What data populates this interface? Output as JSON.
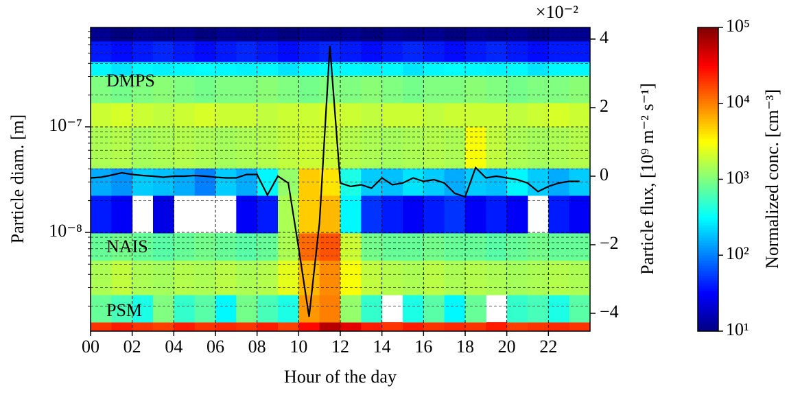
{
  "chart_data": {
    "type": "heatmap",
    "x_label": "Hour of the day",
    "y_label": "Particle diam. [m]",
    "y2_label": "Particle flux, [10⁹ m⁻² s⁻¹]",
    "y2_offset": "×10⁻²",
    "colorbar_label": "Normalized conc. [cm⁻³]",
    "annotations": [
      "DMPS",
      "NAIS",
      "PSM"
    ],
    "colormap": "jet",
    "y_log": true,
    "grid": true,
    "xlim": [
      0,
      24
    ],
    "xticks": [
      {
        "value": 0,
        "label": "00"
      },
      {
        "value": 2,
        "label": "02"
      },
      {
        "value": 4,
        "label": "04"
      },
      {
        "value": 6,
        "label": "06"
      },
      {
        "value": 8,
        "label": "08"
      },
      {
        "value": 10,
        "label": "10"
      },
      {
        "value": 12,
        "label": "12"
      },
      {
        "value": 14,
        "label": "14"
      },
      {
        "value": 16,
        "label": "16"
      },
      {
        "value": 18,
        "label": "18"
      },
      {
        "value": 20,
        "label": "20"
      },
      {
        "value": 22,
        "label": "22"
      }
    ],
    "ylim": [
      1.16e-09,
      8.75e-07
    ],
    "yticks": [
      {
        "value": 1e-08,
        "label": "10⁻⁸"
      },
      {
        "value": 1e-07,
        "label": "10⁻⁷"
      }
    ],
    "yminorticks": [
      2e-09,
      3e-09,
      4e-09,
      5e-09,
      6e-09,
      7e-09,
      8e-09,
      9e-09,
      2e-08,
      3e-08,
      4e-08,
      5e-08,
      6e-08,
      7e-08,
      8e-08,
      9e-08,
      2e-07,
      3e-07,
      4e-07,
      5e-07,
      6e-07,
      7e-07,
      8e-07
    ],
    "y2lim": [
      -4.52,
      4.34
    ],
    "y2ticks": [
      {
        "value": -4,
        "label": "−4"
      },
      {
        "value": -2,
        "label": "−2"
      },
      0,
      2,
      4
    ],
    "clim": [
      10,
      100000
    ],
    "cticks": [
      {
        "value": 10,
        "label": "10¹"
      },
      {
        "value": 100,
        "label": "10²"
      },
      {
        "value": 1000,
        "label": "10³"
      },
      {
        "value": 10000,
        "label": "10⁴"
      },
      {
        "value": 100000,
        "label": "10⁵"
      }
    ],
    "x_bins": [
      0,
      1,
      2,
      3,
      4,
      5,
      6,
      7,
      8,
      9,
      10,
      11,
      12,
      13,
      14,
      15,
      16,
      17,
      18,
      19,
      20,
      21,
      22,
      23,
      24
    ],
    "y_bins": [
      1.16e-09,
      1.41e-09,
      2.56e-09,
      5.42e-09,
      9.86e-09,
      2.24e-08,
      4.07e-08,
      1e-07,
      1.69e-07,
      3.07e-07,
      4.14e-07,
      6.49e-07,
      8.75e-07
    ],
    "z": [
      [
        20000,
        25000,
        20000,
        18000,
        25000,
        20000,
        22000,
        20000,
        25000,
        18000,
        30000,
        60000,
        40000,
        25000,
        20000,
        25000,
        20000,
        22000,
        20000,
        25000,
        18000,
        20000,
        22000,
        20000
      ],
      [
        800,
        600,
        400,
        1000,
        500,
        700,
        300,
        900,
        600,
        400,
        8000,
        10000,
        1200,
        500,
        null,
        400,
        700,
        300,
        800,
        null,
        500,
        600,
        400,
        700
      ],
      [
        1500,
        1800,
        1500,
        1400,
        1600,
        1500,
        1700,
        1500,
        1600,
        2500,
        6000,
        9000,
        3000,
        1800,
        1600,
        1500,
        1700,
        1500,
        1600,
        1500,
        1400,
        1500,
        1600,
        1500
      ],
      [
        800,
        900,
        800,
        700,
        800,
        900,
        800,
        700,
        800,
        1500,
        12000,
        15000,
        2000,
        900,
        800,
        800,
        900,
        800,
        800,
        700,
        800,
        900,
        800,
        800
      ],
      [
        40,
        30,
        null,
        25,
        null,
        null,
        null,
        30,
        40,
        1500,
        5000,
        6000,
        300,
        50,
        40,
        30,
        40,
        50,
        30,
        40,
        30,
        null,
        40,
        30
      ],
      [
        150,
        120,
        200,
        180,
        150,
        100,
        200,
        150,
        300,
        1200,
        5000,
        4000,
        400,
        200,
        180,
        250,
        200,
        150,
        200,
        180,
        300,
        200,
        150,
        200
      ],
      [
        1500,
        1600,
        1400,
        1500,
        1600,
        1500,
        1400,
        1500,
        1600,
        1800,
        2000,
        2000,
        1600,
        1500,
        1400,
        1500,
        1600,
        1500,
        3000,
        1800,
        1500,
        1400,
        1500,
        1600
      ],
      [
        2000,
        2200,
        2000,
        1800,
        2000,
        2200,
        2000,
        2000,
        1800,
        2000,
        2000,
        2200,
        2000,
        1800,
        2000,
        2000,
        1800,
        2000,
        2000,
        2000,
        1800,
        2000,
        2200,
        2000
      ],
      [
        1000,
        900,
        1000,
        1100,
        1000,
        900,
        1000,
        1000,
        1100,
        1000,
        900,
        1000,
        1000,
        1100,
        1000,
        900,
        1000,
        1000,
        1100,
        1000,
        900,
        1000,
        1000,
        1100
      ],
      [
        300,
        250,
        300,
        280,
        300,
        320,
        300,
        280,
        300,
        250,
        300,
        320,
        300,
        280,
        300,
        250,
        300,
        320,
        300,
        280,
        300,
        250,
        300,
        300
      ],
      [
        40,
        35,
        40,
        45,
        40,
        35,
        40,
        45,
        40,
        35,
        40,
        45,
        40,
        35,
        40,
        45,
        40,
        35,
        40,
        45,
        40,
        35,
        40,
        40
      ],
      [
        12,
        10,
        12,
        11,
        12,
        10,
        12,
        11,
        12,
        10,
        12,
        11,
        12,
        10,
        12,
        11,
        12,
        10,
        12,
        11,
        12,
        10,
        12,
        12
      ]
    ],
    "series": [
      {
        "color": "#000000",
        "axis": "y2",
        "x": [
          0,
          0.5,
          1,
          1.5,
          2,
          2.5,
          3,
          3.5,
          4,
          4.5,
          5,
          5.5,
          6,
          6.5,
          7,
          7.5,
          8,
          8.5,
          9,
          9.5,
          10,
          10.5,
          11,
          11.5,
          12,
          12.5,
          13,
          13.5,
          14,
          14.5,
          15,
          15.5,
          16,
          16.5,
          17,
          17.5,
          18,
          18.5,
          19,
          19.5,
          20,
          20.5,
          21,
          21.5,
          22,
          22.5,
          23,
          23.5
        ],
        "values": [
          -0.05,
          -0.03,
          0.03,
          0.1,
          0.05,
          0.02,
          0,
          -0.03,
          0,
          0,
          0.02,
          0,
          -0.03,
          -0.05,
          -0.05,
          0.05,
          0.05,
          -0.55,
          0,
          -0.2,
          -2.1,
          -4.1,
          -1.35,
          3.8,
          -0.2,
          -0.3,
          -0.25,
          -0.35,
          -0.05,
          -0.25,
          -0.2,
          -0.05,
          -0.15,
          -0.1,
          -0.2,
          -0.5,
          -0.6,
          0.25,
          -0.05,
          0,
          -0.05,
          -0.1,
          -0.2,
          -0.45,
          -0.3,
          -0.2,
          -0.15,
          -0.15
        ]
      }
    ]
  }
}
